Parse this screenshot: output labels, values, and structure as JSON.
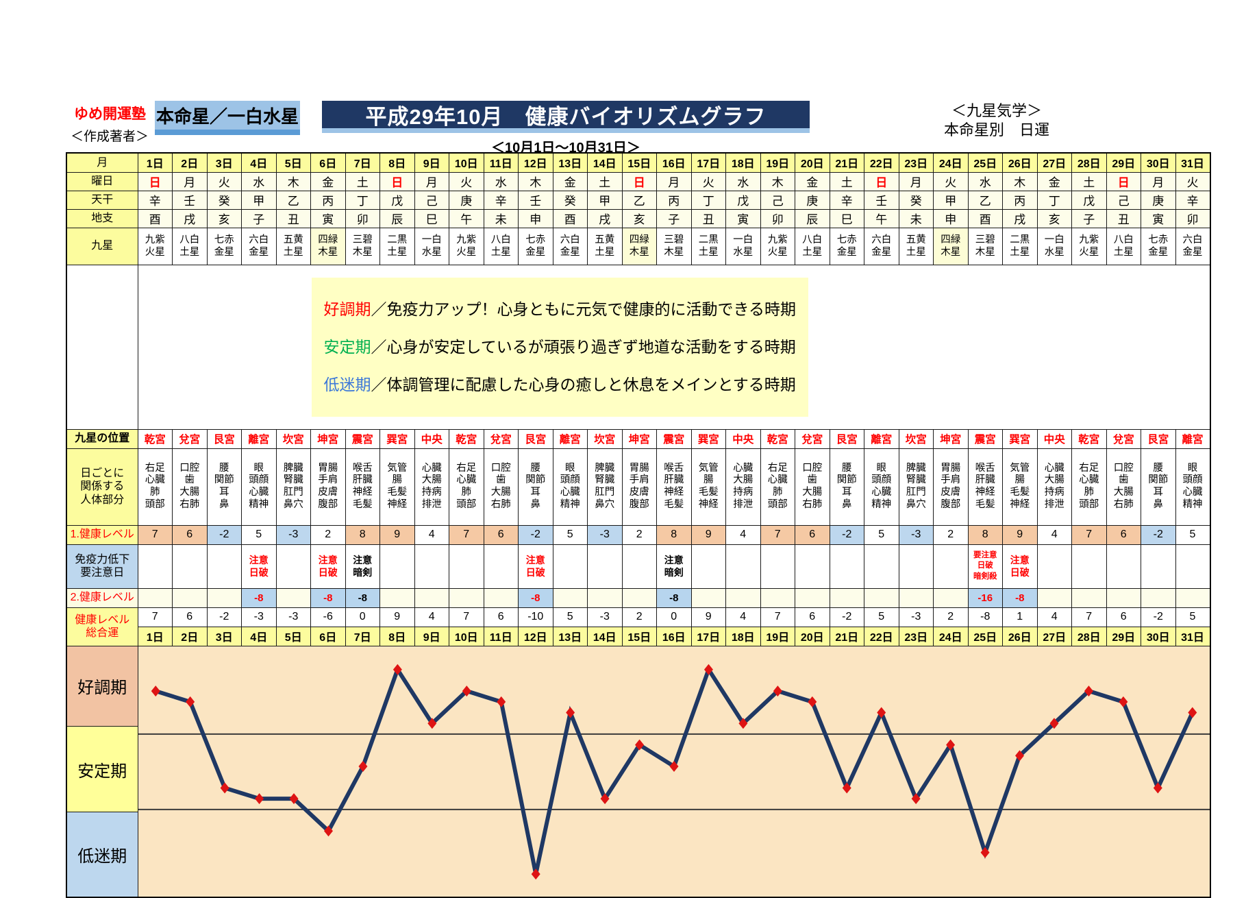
{
  "header": {
    "brand": "ゆめ開運塾",
    "author_label": "＜作成著者＞",
    "honmeisei_label": "本命星／一白水星",
    "title": "平成29年10月　健康バイオリズムグラフ",
    "subtitle": "＜10月1日～10月31日＞",
    "right_line1": "＜九星気学＞",
    "right_line2": "本命星別　日運"
  },
  "row_labels": {
    "month": "月",
    "weekday": "曜日",
    "tenkan": "天干",
    "chishi": "地支",
    "kyusei": "九星",
    "position": "九星の位置",
    "bodyparts": "日ごとに\n関係する\n人体部分",
    "level1": "1.健康レベル",
    "caution": "免疫力低下\n要注意日",
    "level2": "2.健康レベル",
    "total": "健康レベル\n総合運"
  },
  "legend": {
    "items": [
      {
        "term": "好調期",
        "desc": "／免疫力アップ！心身ともに元気で健康的に活動できる時期"
      },
      {
        "term": "安定期",
        "desc": "／心身が安定しているが頑張り過ぎず地道な活動をする時期"
      },
      {
        "term": "低迷期",
        "desc": "／体調管理に配慮した心身の癒しと休息をメインとする時期"
      }
    ]
  },
  "zones": {
    "items": [
      {
        "label": "好調期",
        "color": "#F2C3A3"
      },
      {
        "label": "安定期",
        "color": "#FFFF99"
      },
      {
        "label": "低迷期",
        "color": "#BDD7EE"
      }
    ]
  },
  "table": {
    "body_map": {
      "乾宮": "右足\n心臓\n肺\n頭部",
      "兌宮": "口腔\n歯\n大腸\n右肺",
      "艮宮": "腰\n関節\n耳\n鼻",
      "離宮": "眼\n頭顔\n心臓\n精神",
      "坎宮": "脾臓\n腎臓\n肛門\n鼻穴",
      "坤宮": "胃腸\n手肩\n皮膚\n腹部",
      "震宮": "喉舌\n肝臓\n神経\n毛髪",
      "巽宮": "気管\n腸\n毛髪\n神経",
      "中央": "心臓\n大腸\n持病\n排泄"
    },
    "days": [
      {
        "date": "1日",
        "wd": "日",
        "sun": true,
        "tk": "辛",
        "cs": "酉",
        "ks": "九紫\n火星",
        "hl": false,
        "pos": "乾宮",
        "lv1": 7,
        "cau": "",
        "cau_black": false,
        "lv2": null,
        "tot": 7
      },
      {
        "date": "2日",
        "wd": "月",
        "sun": false,
        "tk": "壬",
        "cs": "戌",
        "ks": "八白\n土星",
        "hl": false,
        "pos": "兌宮",
        "lv1": 6,
        "cau": "",
        "cau_black": false,
        "lv2": null,
        "tot": 6
      },
      {
        "date": "3日",
        "wd": "火",
        "sun": false,
        "tk": "癸",
        "cs": "亥",
        "ks": "七赤\n金星",
        "hl": false,
        "pos": "艮宮",
        "lv1": -2,
        "cau": "",
        "cau_black": false,
        "lv2": null,
        "tot": -2
      },
      {
        "date": "4日",
        "wd": "水",
        "sun": false,
        "tk": "甲",
        "cs": "子",
        "ks": "六白\n金星",
        "hl": false,
        "pos": "離宮",
        "lv1": 5,
        "cau": "注意\n日破",
        "cau_black": false,
        "lv2": -8,
        "tot": -3
      },
      {
        "date": "5日",
        "wd": "木",
        "sun": false,
        "tk": "乙",
        "cs": "丑",
        "ks": "五黄\n土星",
        "hl": false,
        "pos": "坎宮",
        "lv1": -3,
        "cau": "",
        "cau_black": false,
        "lv2": null,
        "tot": -3
      },
      {
        "date": "6日",
        "wd": "金",
        "sun": false,
        "tk": "丙",
        "cs": "寅",
        "ks": "四緑\n木星",
        "hl": true,
        "pos": "坤宮",
        "lv1": 2,
        "cau": "注意\n日破",
        "cau_black": false,
        "lv2": -8,
        "tot": -6
      },
      {
        "date": "7日",
        "wd": "土",
        "sun": false,
        "tk": "丁",
        "cs": "卯",
        "ks": "三碧\n木星",
        "hl": false,
        "pos": "震宮",
        "lv1": 8,
        "cau": "注意\n暗剣",
        "cau_black": true,
        "lv2": -8,
        "tot": 0
      },
      {
        "date": "8日",
        "wd": "日",
        "sun": true,
        "tk": "戊",
        "cs": "辰",
        "ks": "二黒\n土星",
        "hl": false,
        "pos": "巽宮",
        "lv1": 9,
        "cau": "",
        "cau_black": false,
        "lv2": null,
        "tot": 9
      },
      {
        "date": "9日",
        "wd": "月",
        "sun": false,
        "tk": "己",
        "cs": "巳",
        "ks": "一白\n水星",
        "hl": false,
        "pos": "中央",
        "lv1": 4,
        "cau": "",
        "cau_black": false,
        "lv2": null,
        "tot": 4
      },
      {
        "date": "10日",
        "wd": "火",
        "sun": false,
        "tk": "庚",
        "cs": "午",
        "ks": "九紫\n火星",
        "hl": false,
        "pos": "乾宮",
        "lv1": 7,
        "cau": "",
        "cau_black": false,
        "lv2": null,
        "tot": 7
      },
      {
        "date": "11日",
        "wd": "水",
        "sun": false,
        "tk": "辛",
        "cs": "未",
        "ks": "八白\n土星",
        "hl": false,
        "pos": "兌宮",
        "lv1": 6,
        "cau": "",
        "cau_black": false,
        "lv2": null,
        "tot": 6
      },
      {
        "date": "12日",
        "wd": "木",
        "sun": false,
        "tk": "壬",
        "cs": "申",
        "ks": "七赤\n金星",
        "hl": false,
        "pos": "艮宮",
        "lv1": -2,
        "cau": "注意\n日破",
        "cau_black": false,
        "lv2": -8,
        "tot": -10
      },
      {
        "date": "13日",
        "wd": "金",
        "sun": false,
        "tk": "癸",
        "cs": "酉",
        "ks": "六白\n金星",
        "hl": false,
        "pos": "離宮",
        "lv1": 5,
        "cau": "",
        "cau_black": false,
        "lv2": null,
        "tot": 5
      },
      {
        "date": "14日",
        "wd": "土",
        "sun": false,
        "tk": "甲",
        "cs": "戌",
        "ks": "五黄\n土星",
        "hl": false,
        "pos": "坎宮",
        "lv1": -3,
        "cau": "",
        "cau_black": false,
        "lv2": null,
        "tot": -3
      },
      {
        "date": "15日",
        "wd": "日",
        "sun": true,
        "tk": "乙",
        "cs": "亥",
        "ks": "四緑\n木星",
        "hl": true,
        "pos": "坤宮",
        "lv1": 2,
        "cau": "",
        "cau_black": false,
        "lv2": null,
        "tot": 2
      },
      {
        "date": "16日",
        "wd": "月",
        "sun": false,
        "tk": "丙",
        "cs": "子",
        "ks": "三碧\n木星",
        "hl": false,
        "pos": "震宮",
        "lv1": 8,
        "cau": "注意\n暗剣",
        "cau_black": true,
        "lv2": -8,
        "tot": 0
      },
      {
        "date": "17日",
        "wd": "火",
        "sun": false,
        "tk": "丁",
        "cs": "丑",
        "ks": "二黒\n土星",
        "hl": false,
        "pos": "巽宮",
        "lv1": 9,
        "cau": "",
        "cau_black": false,
        "lv2": null,
        "tot": 9
      },
      {
        "date": "18日",
        "wd": "水",
        "sun": false,
        "tk": "戊",
        "cs": "寅",
        "ks": "一白\n水星",
        "hl": false,
        "pos": "中央",
        "lv1": 4,
        "cau": "",
        "cau_black": false,
        "lv2": null,
        "tot": 4
      },
      {
        "date": "19日",
        "wd": "木",
        "sun": false,
        "tk": "己",
        "cs": "卯",
        "ks": "九紫\n火星",
        "hl": false,
        "pos": "乾宮",
        "lv1": 7,
        "cau": "",
        "cau_black": false,
        "lv2": null,
        "tot": 7
      },
      {
        "date": "20日",
        "wd": "金",
        "sun": false,
        "tk": "庚",
        "cs": "辰",
        "ks": "八白\n土星",
        "hl": false,
        "pos": "兌宮",
        "lv1": 6,
        "cau": "",
        "cau_black": false,
        "lv2": null,
        "tot": 6
      },
      {
        "date": "21日",
        "wd": "土",
        "sun": false,
        "tk": "辛",
        "cs": "巳",
        "ks": "七赤\n金星",
        "hl": false,
        "pos": "艮宮",
        "lv1": -2,
        "cau": "",
        "cau_black": false,
        "lv2": null,
        "tot": -2
      },
      {
        "date": "22日",
        "wd": "日",
        "sun": true,
        "tk": "壬",
        "cs": "午",
        "ks": "六白\n金星",
        "hl": false,
        "pos": "離宮",
        "lv1": 5,
        "cau": "",
        "cau_black": false,
        "lv2": null,
        "tot": 5
      },
      {
        "date": "23日",
        "wd": "月",
        "sun": false,
        "tk": "癸",
        "cs": "未",
        "ks": "五黄\n土星",
        "hl": false,
        "pos": "坎宮",
        "lv1": -3,
        "cau": "",
        "cau_black": false,
        "lv2": null,
        "tot": -3
      },
      {
        "date": "24日",
        "wd": "火",
        "sun": false,
        "tk": "甲",
        "cs": "申",
        "ks": "四緑\n木星",
        "hl": true,
        "pos": "坤宮",
        "lv1": 2,
        "cau": "",
        "cau_black": false,
        "lv2": null,
        "tot": 2
      },
      {
        "date": "25日",
        "wd": "水",
        "sun": false,
        "tk": "乙",
        "cs": "酉",
        "ks": "三碧\n木星",
        "hl": false,
        "pos": "震宮",
        "lv1": 8,
        "cau": "要注意\n日破\n暗剣殺",
        "cau_black": false,
        "lv2": -16,
        "tot": -8
      },
      {
        "date": "26日",
        "wd": "木",
        "sun": false,
        "tk": "丙",
        "cs": "戌",
        "ks": "二黒\n土星",
        "hl": false,
        "pos": "巽宮",
        "lv1": 9,
        "cau": "注意\n日破",
        "cau_black": false,
        "lv2": -8,
        "tot": 1
      },
      {
        "date": "27日",
        "wd": "金",
        "sun": false,
        "tk": "丁",
        "cs": "亥",
        "ks": "一白\n水星",
        "hl": false,
        "pos": "中央",
        "lv1": 4,
        "cau": "",
        "cau_black": false,
        "lv2": null,
        "tot": 4
      },
      {
        "date": "28日",
        "wd": "土",
        "sun": false,
        "tk": "戊",
        "cs": "子",
        "ks": "九紫\n火星",
        "hl": false,
        "pos": "乾宮",
        "lv1": 7,
        "cau": "",
        "cau_black": false,
        "lv2": null,
        "tot": 7
      },
      {
        "date": "29日",
        "wd": "日",
        "sun": true,
        "tk": "己",
        "cs": "丑",
        "ks": "八白\n土星",
        "hl": false,
        "pos": "兌宮",
        "lv1": 6,
        "cau": "",
        "cau_black": false,
        "lv2": null,
        "tot": 6
      },
      {
        "date": "30日",
        "wd": "月",
        "sun": false,
        "tk": "庚",
        "cs": "寅",
        "ks": "七赤\n金星",
        "hl": false,
        "pos": "艮宮",
        "lv1": -2,
        "cau": "",
        "cau_black": false,
        "lv2": null,
        "tot": -2
      },
      {
        "date": "31日",
        "wd": "火",
        "sun": false,
        "tk": "辛",
        "cs": "卯",
        "ks": "六白\n金星",
        "hl": false,
        "pos": "離宮",
        "lv1": 5,
        "cau": "",
        "cau_black": false,
        "lv2": null,
        "tot": 5
      }
    ]
  },
  "chart_data": {
    "type": "line",
    "title": "健康レベル総合運（平成29年10月）",
    "x_labels": [
      "1日",
      "2日",
      "3日",
      "4日",
      "5日",
      "6日",
      "7日",
      "8日",
      "9日",
      "10日",
      "11日",
      "12日",
      "13日",
      "14日",
      "15日",
      "16日",
      "17日",
      "18日",
      "19日",
      "20日",
      "21日",
      "22日",
      "23日",
      "24日",
      "25日",
      "26日",
      "27日",
      "28日",
      "29日",
      "30日",
      "31日"
    ],
    "values": [
      7,
      6,
      -2,
      -3,
      -3,
      -6,
      0,
      9,
      4,
      7,
      6,
      -10,
      5,
      -3,
      2,
      0,
      9,
      4,
      7,
      6,
      -2,
      5,
      -3,
      2,
      -8,
      1,
      4,
      7,
      6,
      -2,
      5
    ],
    "ylim": [
      -11,
      10
    ],
    "zone_bounds": [
      3,
      -4
    ],
    "zone_labels": [
      "好調期",
      "安定期",
      "低迷期"
    ],
    "grid": "zone-dividers-only",
    "legend_position": "none",
    "line_color": "#1F3864",
    "marker_color": "#DE1414",
    "plot_bg": "#FBE5C2"
  },
  "colors": {
    "title_bg": "#1F3864",
    "honmei_bg": "#9DC3E6",
    "honmei_strip": "#5B9BD5",
    "header_yellow": "#FCFC9E",
    "cell_cream": "#FDFDEA",
    "level_salmon": "#F5C9A4",
    "level_blue": "#BDD7EE",
    "legend_bg": "#FFFFC4",
    "accent_red": "#FF0000",
    "legend_term_colors": [
      "#FF0000",
      "#00B050",
      "#3C78D8"
    ]
  }
}
